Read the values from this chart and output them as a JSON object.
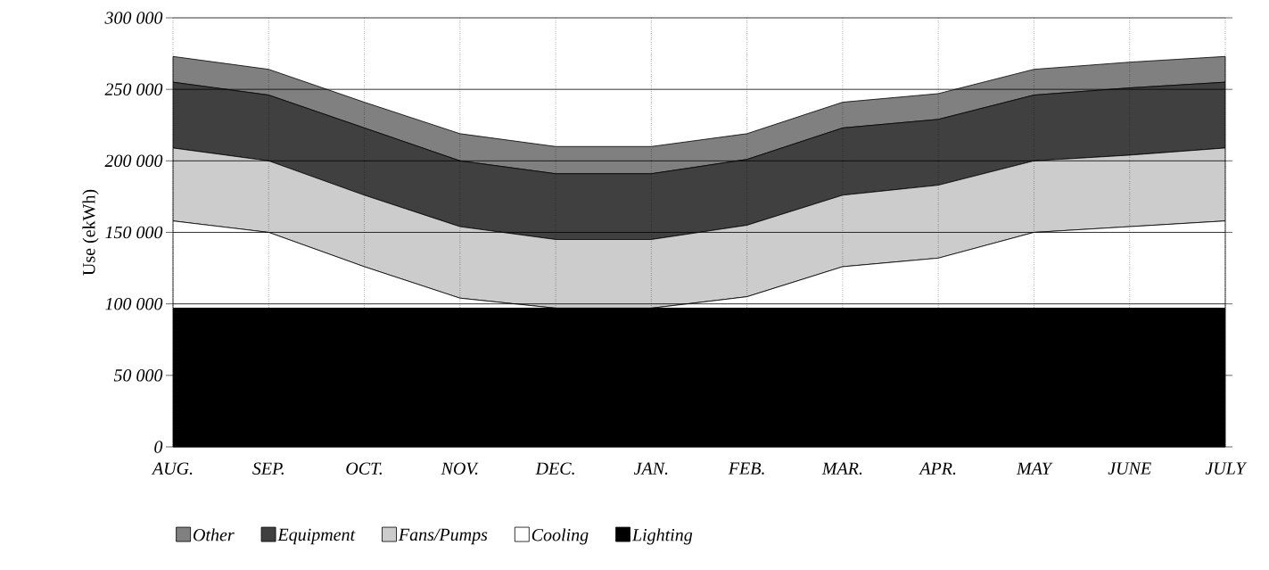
{
  "chart_data": {
    "type": "area",
    "stacked": true,
    "ylabel": "Use (ekWh)",
    "categories": [
      "AUG.",
      "SEP.",
      "OCT.",
      "NOV.",
      "DEC.",
      "JAN.",
      "FEB.",
      "MAR.",
      "APR.",
      "MAY",
      "JUNE",
      "JULY"
    ],
    "series": [
      {
        "name": "Lighting",
        "color": "#000000",
        "values": [
          97000,
          97000,
          97000,
          97000,
          97000,
          97000,
          97000,
          97000,
          97000,
          97000,
          97000,
          97000
        ]
      },
      {
        "name": "Cooling",
        "color": "#ffffff",
        "values": [
          61000,
          53000,
          29000,
          7000,
          0,
          0,
          8000,
          29000,
          35000,
          53000,
          57000,
          61000
        ]
      },
      {
        "name": "Fans/Pumps",
        "color": "#cccccc",
        "values": [
          51000,
          50000,
          50000,
          50000,
          48000,
          48000,
          50000,
          50000,
          51000,
          50000,
          50000,
          51000
        ]
      },
      {
        "name": "Equipment",
        "color": "#404040",
        "values": [
          46000,
          46000,
          47000,
          46000,
          46000,
          46000,
          46000,
          47000,
          46000,
          46000,
          47000,
          46000
        ]
      },
      {
        "name": "Other",
        "color": "#808080",
        "values": [
          18000,
          18000,
          18000,
          19000,
          19000,
          19000,
          18000,
          18000,
          18000,
          18000,
          18000,
          18000
        ]
      }
    ],
    "ylim": [
      0,
      300000
    ],
    "yticks": [
      0,
      {
        "value": 50000,
        "label": "50 000"
      },
      {
        "value": 100000,
        "label": "100 000"
      },
      {
        "value": 150000,
        "label": "150 000"
      },
      {
        "value": 200000,
        "label": "200 000"
      },
      {
        "value": 250000,
        "label": "250 000"
      },
      {
        "value": 300000,
        "label": "300 000"
      }
    ],
    "grid": true,
    "legend": "bottom"
  }
}
